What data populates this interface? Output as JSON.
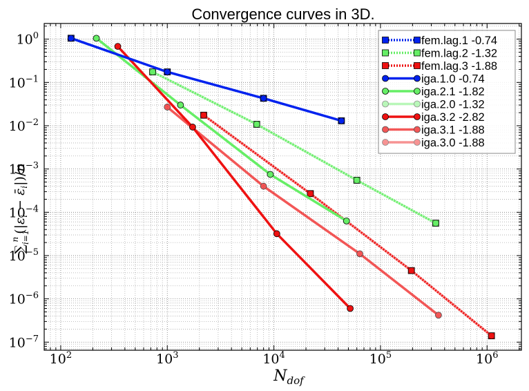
{
  "chart_data": {
    "type": "line",
    "title": "Convergence curves in 3D.",
    "xlabel": "N_dof",
    "ylabel": "∑_{i=1}^{n}(|ε_i − ε̄_i|)/n",
    "xscale": "log",
    "yscale": "log",
    "xlim": [
      70,
      2100000
    ],
    "ylim": [
      6.5e-08,
      2.3
    ],
    "grid": true,
    "legend_position": "top-right",
    "x_ticks": [
      {
        "value": 100,
        "base": "10",
        "exp": "2"
      },
      {
        "value": 1000,
        "base": "10",
        "exp": "3"
      },
      {
        "value": 10000,
        "base": "10",
        "exp": "4"
      },
      {
        "value": 100000,
        "base": "10",
        "exp": "5"
      },
      {
        "value": 1000000,
        "base": "10",
        "exp": "6"
      }
    ],
    "y_ticks": [
      {
        "value": 1,
        "base": "10",
        "exp": "0"
      },
      {
        "value": 0.1,
        "base": "10",
        "exp": "−1"
      },
      {
        "value": 0.01,
        "base": "10",
        "exp": "−2"
      },
      {
        "value": 0.001,
        "base": "10",
        "exp": "−3"
      },
      {
        "value": 0.0001,
        "base": "10",
        "exp": "−4"
      },
      {
        "value": 1e-05,
        "base": "10",
        "exp": "−5"
      },
      {
        "value": 1e-06,
        "base": "10",
        "exp": "−6"
      },
      {
        "value": 1e-07,
        "base": "10",
        "exp": "−7"
      }
    ],
    "series": [
      {
        "name": "fem.lag.1 -0.74",
        "color": "#0022ee",
        "dash": true,
        "marker": "square",
        "opacity": 1.0,
        "x": [
          125,
          1000,
          8000,
          43000
        ],
        "y": [
          1.05,
          0.175,
          0.043,
          0.013
        ]
      },
      {
        "name": "fem.lag.2 -1.32",
        "color": "#66ee66",
        "dash": true,
        "marker": "square",
        "opacity": 1.0,
        "x": [
          729,
          6900,
          60000,
          330000
        ],
        "y": [
          0.175,
          0.0108,
          0.00055,
          5.6e-05
        ]
      },
      {
        "name": "fem.lag.3 -1.88",
        "color": "#ee1111",
        "dash": true,
        "marker": "square",
        "opacity": 1.0,
        "x": [
          2197,
          22000,
          195000,
          1100000
        ],
        "y": [
          0.0175,
          0.00027,
          4.5e-06,
          1.4e-07
        ]
      },
      {
        "name": "iga.1.0 -0.74",
        "color": "#0022ee",
        "dash": false,
        "marker": "circle",
        "opacity": 1.0,
        "x": [
          125,
          1000,
          8000,
          43000
        ],
        "y": [
          1.05,
          0.175,
          0.043,
          0.013
        ]
      },
      {
        "name": "iga.2.1 -1.82",
        "color": "#66ee66",
        "dash": false,
        "marker": "circle",
        "opacity": 1.0,
        "x": [
          216,
          1331,
          9261,
          48000
        ],
        "y": [
          1.05,
          0.03,
          0.00075,
          6.3e-05
        ]
      },
      {
        "name": "iga.2.0 -1.32",
        "color": "#66ee66",
        "dash": false,
        "marker": "circle",
        "opacity": 0.45,
        "x": [
          729,
          6900,
          60000,
          330000
        ],
        "y": [
          0.175,
          0.0108,
          0.00055,
          5.6e-05
        ]
      },
      {
        "name": "iga.3.2 -2.82",
        "color": "#ee1111",
        "dash": false,
        "marker": "circle",
        "opacity": 1.0,
        "x": [
          343,
          1728,
          10648,
          52000
        ],
        "y": [
          0.68,
          0.0093,
          3.2e-05,
          6e-07
        ]
      },
      {
        "name": "iga.3.1 -1.88",
        "color": "#ee1111",
        "dash": false,
        "marker": "circle",
        "opacity": 0.7,
        "x": [
          1000,
          8000,
          64000,
          350000
        ],
        "y": [
          0.027,
          0.0004,
          1.1e-05,
          4.2e-07
        ]
      },
      {
        "name": "iga.3.0 -1.88",
        "color": "#ee1111",
        "dash": false,
        "marker": "circle",
        "opacity": 0.45,
        "x": [
          2197,
          22000,
          195000,
          1100000
        ],
        "y": [
          0.0175,
          0.00027,
          4.5e-06,
          1.4e-07
        ]
      }
    ]
  }
}
